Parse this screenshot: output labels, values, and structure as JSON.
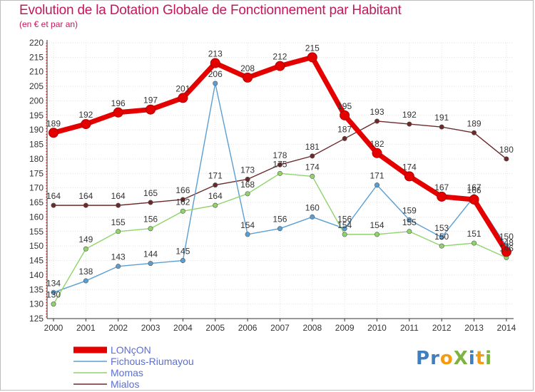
{
  "title": "Evolution de la Dotation Globale de Fonctionnement par Habitant",
  "subtitle": "(en € et par an)",
  "logo": {
    "text": "ProXiti",
    "letters": [
      {
        "ch": "P",
        "color": "#3f7fc0"
      },
      {
        "ch": "r",
        "color": "#3f7fc0"
      },
      {
        "ch": "o",
        "color": "#f39c12"
      },
      {
        "ch": "X",
        "color": "#7cb342"
      },
      {
        "ch": "i",
        "color": "#3f7fc0"
      },
      {
        "ch": "t",
        "color": "#f39c12"
      },
      {
        "ch": "i",
        "color": "#7cb342"
      }
    ]
  },
  "chart_data": {
    "type": "line",
    "title": "Evolution de la Dotation Globale de Fonctionnement par Habitant",
    "ylabel": "(en € et par an)",
    "xlabel": "",
    "ylim": [
      125,
      220
    ],
    "yticks": [
      125,
      130,
      135,
      140,
      145,
      150,
      155,
      160,
      165,
      170,
      175,
      180,
      185,
      190,
      195,
      200,
      205,
      210,
      215,
      220
    ],
    "categories": [
      "2000",
      "2001",
      "2002",
      "2003",
      "2004",
      "2005",
      "2006",
      "2007",
      "2008",
      "2009",
      "2010",
      "2011",
      "2012",
      "2013",
      "2014"
    ],
    "series": [
      {
        "name": "LONçON",
        "color": "#e50000",
        "values": [
          189,
          192,
          196,
          197,
          201,
          213,
          208,
          212,
          215,
          195,
          182,
          174,
          167,
          166,
          148
        ]
      },
      {
        "name": "Fichous-Riumayou",
        "color": "#5a9fd4",
        "values": [
          134,
          138,
          143,
          144,
          145,
          206,
          154,
          156,
          160,
          156,
          171,
          159,
          153,
          167,
          150
        ]
      },
      {
        "name": "Momas",
        "color": "#8fd46a",
        "values": [
          130,
          149,
          155,
          156,
          162,
          164,
          168,
          175,
          174,
          154,
          154,
          155,
          150,
          151,
          146
        ]
      },
      {
        "name": "Mialos",
        "color": "#6b2a2a",
        "values": [
          164,
          164,
          164,
          165,
          166,
          171,
          173,
          178,
          181,
          187,
          193,
          192,
          191,
          189,
          180
        ]
      }
    ]
  }
}
